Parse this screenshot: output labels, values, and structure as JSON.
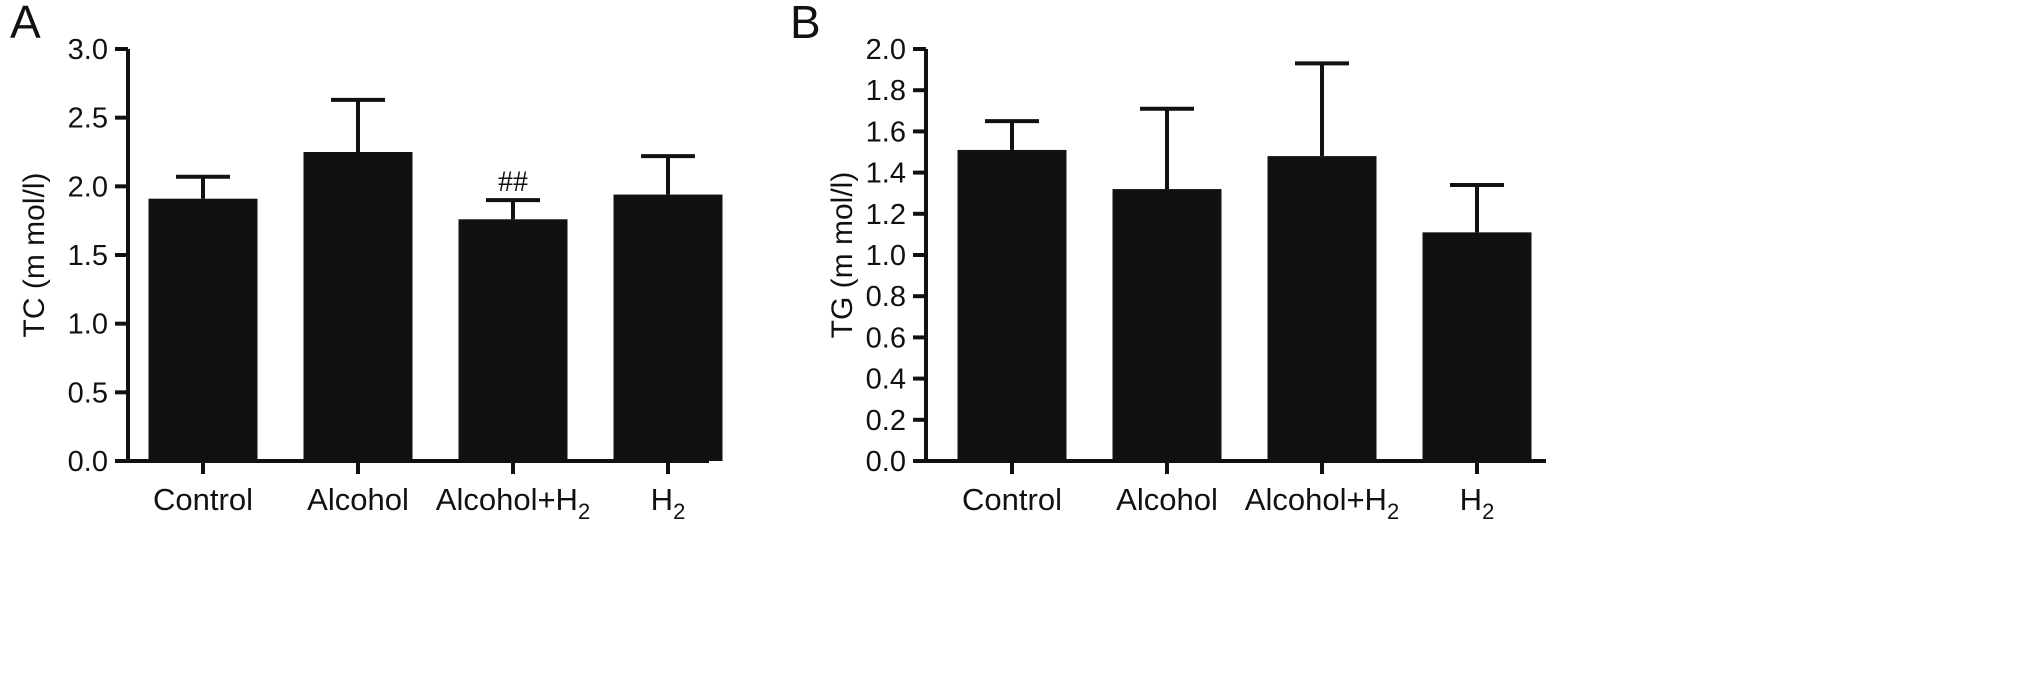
{
  "chart_data": [
    {
      "type": "bar",
      "panel_label": "A",
      "ylabel": "TC (m mol/l)",
      "categories": [
        {
          "base": "Control",
          "sub": ""
        },
        {
          "base": "Alcohol",
          "sub": ""
        },
        {
          "base": "Alcohol+H",
          "sub": "2"
        },
        {
          "base": "H",
          "sub": "2"
        }
      ],
      "values": [
        1.91,
        2.25,
        1.76,
        1.94
      ],
      "errors": [
        0.16,
        0.38,
        0.14,
        0.28
      ],
      "annotations": [
        "",
        "",
        "##",
        ""
      ],
      "ylim": [
        0,
        3.0
      ],
      "yticks": [
        "0.0",
        "0.5",
        "1.0",
        "1.5",
        "2.0",
        "2.5",
        "3.0"
      ],
      "bar_color": "#111111",
      "grid": false
    },
    {
      "type": "bar",
      "panel_label": "B",
      "ylabel": "TG (m mol/l)",
      "categories": [
        {
          "base": "Control",
          "sub": ""
        },
        {
          "base": "Alcohol",
          "sub": ""
        },
        {
          "base": "Alcohol+H",
          "sub": "2"
        },
        {
          "base": "H",
          "sub": "2"
        }
      ],
      "values": [
        1.51,
        1.32,
        1.48,
        1.11
      ],
      "errors": [
        0.14,
        0.39,
        0.45,
        0.23
      ],
      "annotations": [
        "",
        "",
        "",
        ""
      ],
      "ylim": [
        0,
        2.0
      ],
      "yticks": [
        "0.0",
        "0.2",
        "0.4",
        "0.6",
        "0.8",
        "1.0",
        "1.2",
        "1.4",
        "1.6",
        "1.8",
        "2.0"
      ],
      "bar_color": "#111111",
      "grid": false
    }
  ]
}
